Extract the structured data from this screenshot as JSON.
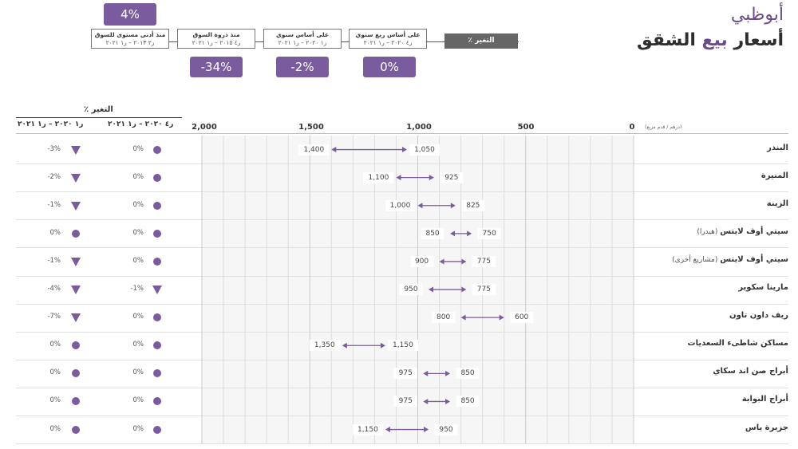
{
  "title": {
    "city": "أبوظبي",
    "main": "أسعار بيع الشقق",
    "highlight": "بيع"
  },
  "summary": {
    "change_label": "٪ التغير",
    "boxes": [
      {
        "line1": "على أساس ربع سنوي",
        "line2": "ر٤ ٢٠٢٠ – ر١ ٢٠٢١",
        "value": "0%"
      },
      {
        "line1": "على أساس سنوي",
        "line2": "ر١ ٢٠٢٠ – ر١ ٢٠٢١",
        "value": "-2%"
      },
      {
        "line1": "منذ ذروة السوق",
        "line2": "ر٤ ٢٠١٥ – ر١ ٢٠٢١",
        "value": "-34%"
      },
      {
        "line1": "منذ أدنى مستوى للسوق",
        "line2": "ر٢ ٢٠١٣ – ر١ ٢٠٢١",
        "value": "4%"
      }
    ]
  },
  "table": {
    "change_header": "٪ التغير",
    "col_qoq": "ر٤ ٢٠٢٠ – ر١ ٢٠٢١",
    "col_yoy": "ر١ ٢٠٢٠ – ر١ ٢٠٢١",
    "unit": "(درهم / قدم مربع)"
  },
  "chart_data": {
    "type": "range",
    "x_axis_ticks": [
      "2,000",
      "1,500",
      "1,000",
      "500",
      "0"
    ],
    "xlim": [
      0,
      2000
    ],
    "x_reversed": true,
    "color_accent": "#7a5c9e",
    "rows": [
      {
        "name": "البندر",
        "sub": "",
        "low": 1050,
        "high": 1400,
        "low_label": "1,050",
        "high_label": "1,400",
        "qoq": "0%",
        "qoq_mark": "dot",
        "yoy": "-3%",
        "yoy_mark": "down"
      },
      {
        "name": "المنيرة",
        "sub": "",
        "low": 925,
        "high": 1100,
        "low_label": "925",
        "high_label": "1,100",
        "qoq": "0%",
        "qoq_mark": "dot",
        "yoy": "-2%",
        "yoy_mark": "down"
      },
      {
        "name": "الزينة",
        "sub": "",
        "low": 825,
        "high": 1000,
        "low_label": "825",
        "high_label": "1,000",
        "qoq": "0%",
        "qoq_mark": "dot",
        "yoy": "-1%",
        "yoy_mark": "down"
      },
      {
        "name": "سيتي أوف لايتس",
        "sub": "(هيدرا)",
        "low": 750,
        "high": 850,
        "low_label": "750",
        "high_label": "850",
        "qoq": "0%",
        "qoq_mark": "dot",
        "yoy": "0%",
        "yoy_mark": "dot"
      },
      {
        "name": "سيتي أوف لايتس",
        "sub": "(مشاريع أخرى)",
        "low": 775,
        "high": 900,
        "low_label": "775",
        "high_label": "900",
        "qoq": "0%",
        "qoq_mark": "dot",
        "yoy": "-1%",
        "yoy_mark": "down"
      },
      {
        "name": "مارينا سكوير",
        "sub": "",
        "low": 775,
        "high": 950,
        "low_label": "775",
        "high_label": "950",
        "qoq": "-1%",
        "qoq_mark": "down",
        "yoy": "-4%",
        "yoy_mark": "down"
      },
      {
        "name": "ريف داون تاون",
        "sub": "",
        "low": 600,
        "high": 800,
        "low_label": "600",
        "high_label": "800",
        "qoq": "0%",
        "qoq_mark": "dot",
        "yoy": "-7%",
        "yoy_mark": "down"
      },
      {
        "name": "مساكن شاطىء السعديات",
        "sub": "",
        "low": 1150,
        "high": 1350,
        "low_label": "1,150",
        "high_label": "1,350",
        "qoq": "0%",
        "qoq_mark": "dot",
        "yoy": "0%",
        "yoy_mark": "dot"
      },
      {
        "name": "أبراج صن اند سكاي",
        "sub": "",
        "low": 850,
        "high": 975,
        "low_label": "850",
        "high_label": "975",
        "qoq": "0%",
        "qoq_mark": "dot",
        "yoy": "0%",
        "yoy_mark": "dot"
      },
      {
        "name": "أبراج البوابة",
        "sub": "",
        "low": 850,
        "high": 975,
        "low_label": "850",
        "high_label": "975",
        "qoq": "0%",
        "qoq_mark": "dot",
        "yoy": "0%",
        "yoy_mark": "dot"
      },
      {
        "name": "جزيرة ياس",
        "sub": "",
        "low": 950,
        "high": 1150,
        "low_label": "950",
        "high_label": "1,150",
        "qoq": "0%",
        "qoq_mark": "dot",
        "yoy": "0%",
        "yoy_mark": "dot"
      }
    ]
  }
}
